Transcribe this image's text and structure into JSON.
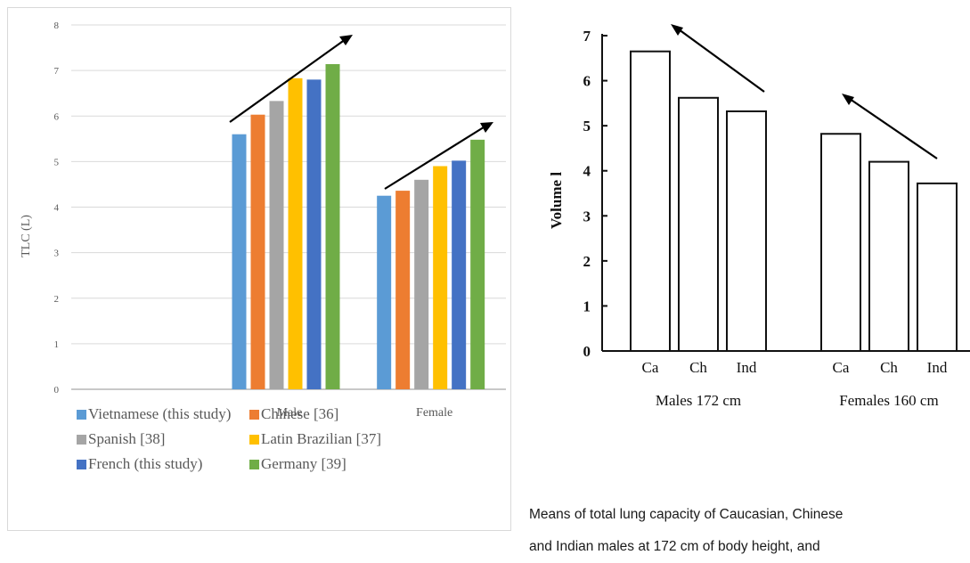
{
  "chart_data": [
    {
      "type": "bar",
      "title": "",
      "xlabel": "",
      "ylabel": "TLC (L)",
      "ylim": [
        0,
        8
      ],
      "yticks": [
        0,
        1,
        2,
        3,
        4,
        5,
        6,
        7,
        8
      ],
      "grid": true,
      "legend_position": "bottom",
      "categories": [
        "",
        "Male",
        "Female"
      ],
      "series": [
        {
          "name": "Vietnamese (this study)",
          "color": "#5b9bd5",
          "values": [
            null,
            5.6,
            4.25
          ]
        },
        {
          "name": "Chinese [36]",
          "color": "#ed7d31",
          "values": [
            null,
            6.03,
            4.36
          ]
        },
        {
          "name": "Spanish [38]",
          "color": "#a5a5a5",
          "values": [
            null,
            6.33,
            4.6
          ]
        },
        {
          "name": "Latin Brazilian [37]",
          "color": "#ffc000",
          "values": [
            null,
            6.83,
            4.9
          ]
        },
        {
          "name": "French (this study)",
          "color": "#4472c4",
          "values": [
            null,
            6.8,
            5.02
          ]
        },
        {
          "name": "Germany [39]",
          "color": "#70ad47",
          "values": [
            null,
            7.14,
            5.48
          ]
        }
      ]
    },
    {
      "type": "bar",
      "title": "",
      "xlabel": "",
      "ylabel": "Volume  l",
      "ylim": [
        0,
        7
      ],
      "yticks": [
        0,
        1,
        2,
        3,
        4,
        5,
        6,
        7
      ],
      "grid": false,
      "groups": [
        {
          "label": "Males   172 cm",
          "categories": [
            "Ca",
            "Ch",
            "Ind"
          ],
          "values": [
            6.65,
            5.62,
            5.32
          ]
        },
        {
          "label": "Females   160 cm",
          "categories": [
            "Ca",
            "Ch",
            "Ind"
          ],
          "values": [
            4.82,
            4.2,
            3.72
          ]
        }
      ]
    }
  ],
  "caption": {
    "lines": [
      "Means of total lung capacity of Caucasian, Chinese",
      "and Indian males at 172 cm of body height, and"
    ]
  }
}
